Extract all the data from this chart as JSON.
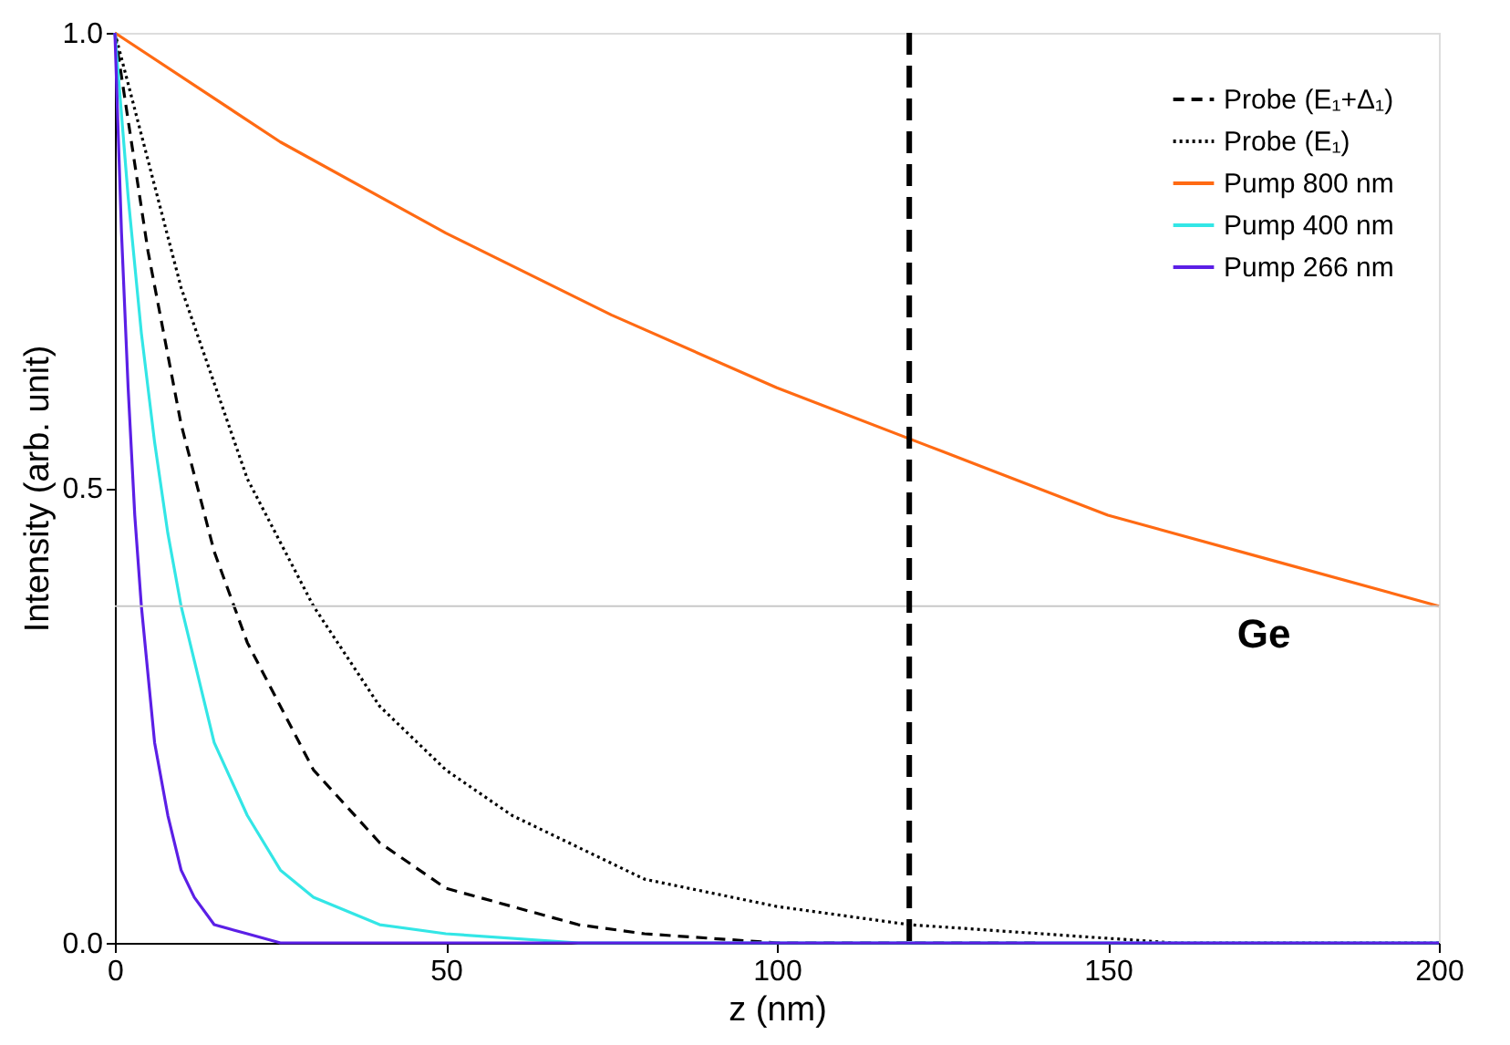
{
  "chart_data": {
    "type": "line",
    "xlabel": "z (nm)",
    "ylabel": "Intensity (arb. unit)",
    "xlim": [
      0,
      200
    ],
    "xticks": [
      0,
      50,
      100,
      150,
      200
    ],
    "ylim": [
      0,
      1
    ],
    "yticks": [
      {
        "value": 0,
        "label": "0.0"
      },
      {
        "value": 0.5,
        "label": "0.5"
      },
      {
        "value": 1,
        "label": "1.0"
      }
    ],
    "grid": false,
    "legend": "top right",
    "marker": "none",
    "series": [
      {
        "name": "Probe (E₁+Δ₁)",
        "color": "#000000",
        "line_style": "dashed",
        "x": [
          0,
          5,
          10,
          15,
          20,
          30,
          40,
          50,
          60,
          70,
          80,
          100,
          120,
          140
        ],
        "values": [
          1,
          0.76,
          0.57,
          0.43,
          0.33,
          0.19,
          0.11,
          0.06,
          0.04,
          0.02,
          0.01,
          0,
          0,
          0
        ]
      },
      {
        "name": "Probe (E₁)",
        "color": "#000000",
        "line_style": "dotted",
        "x": [
          0,
          10,
          20,
          30,
          40,
          50,
          60,
          80,
          100,
          120,
          140,
          160,
          180,
          200
        ],
        "values": [
          1,
          0.72,
          0.51,
          0.37,
          0.26,
          0.19,
          0.14,
          0.07,
          0.04,
          0.02,
          0.01,
          0,
          0,
          0
        ]
      },
      {
        "name": "Pump 800 nm",
        "color": "#ff6a13",
        "line_style": "solid",
        "x": [
          0,
          25,
          50,
          75,
          100,
          125,
          150,
          175,
          200
        ],
        "values": [
          1,
          0.88,
          0.78,
          0.69,
          0.61,
          0.54,
          0.47,
          0.42,
          0.37
        ]
      },
      {
        "name": "Pump 400 nm",
        "color": "#33e6e6",
        "line_style": "solid",
        "x": [
          0,
          2,
          4,
          6,
          8,
          10,
          15,
          20,
          25,
          30,
          40,
          50,
          70,
          100,
          200
        ],
        "values": [
          1,
          0.82,
          0.67,
          0.55,
          0.45,
          0.37,
          0.22,
          0.14,
          0.08,
          0.05,
          0.02,
          0.01,
          0,
          0,
          0
        ]
      },
      {
        "name": "Pump 266 nm",
        "color": "#5b1fe6",
        "line_style": "solid",
        "x": [
          0,
          1,
          2,
          3,
          4,
          6,
          8,
          10,
          12,
          15,
          20,
          25,
          30,
          40,
          200
        ],
        "values": [
          1,
          0.78,
          0.61,
          0.47,
          0.37,
          0.22,
          0.14,
          0.08,
          0.05,
          0.02,
          0.01,
          0,
          0,
          0,
          0
        ]
      }
    ],
    "ref_lines": [
      {
        "axis": "y",
        "value": 0.37,
        "color": "#c8c8c8",
        "line_style": "solid"
      },
      {
        "axis": "x",
        "value": 120,
        "color": "#000000",
        "line_style": "dashed"
      }
    ],
    "annotations": [
      "Ge"
    ]
  }
}
